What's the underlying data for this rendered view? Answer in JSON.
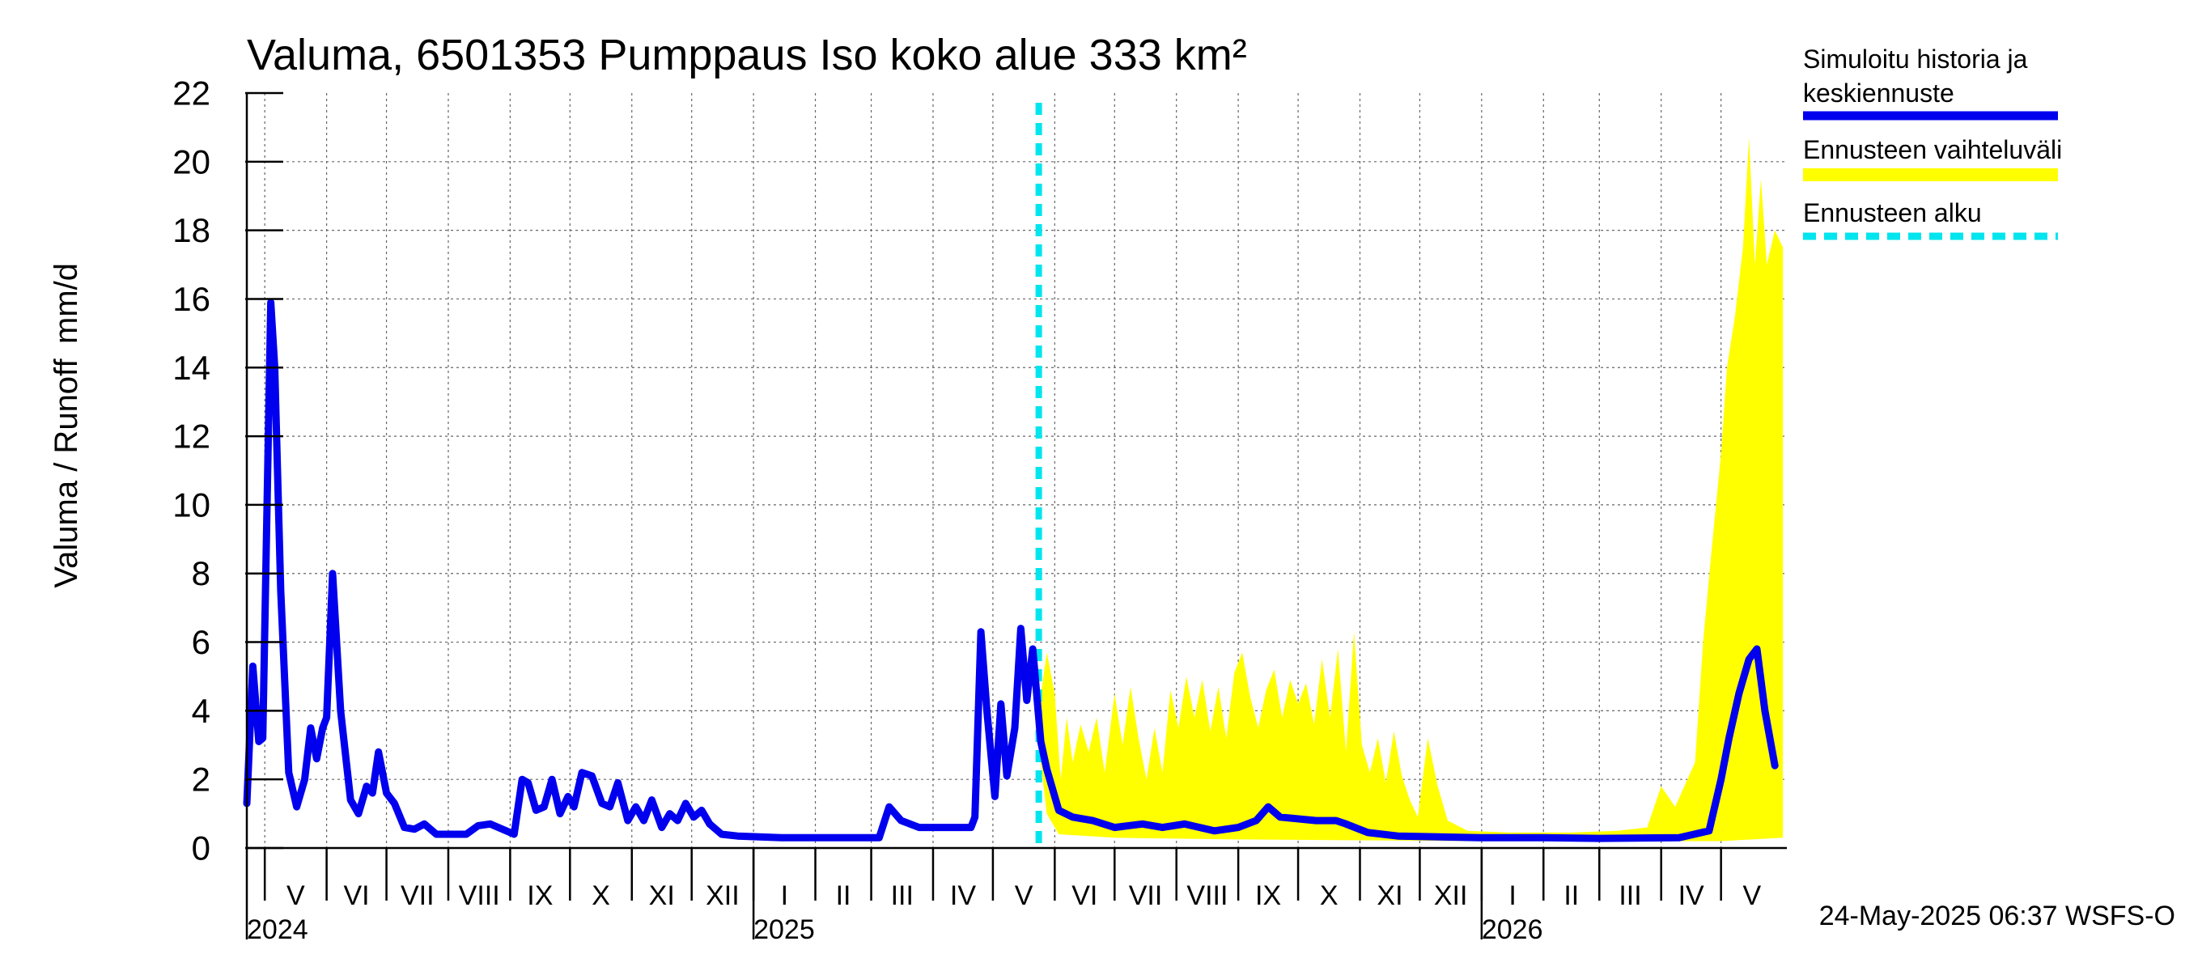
{
  "chart_data": {
    "type": "line",
    "title": "Valuma, 6501353 Pumppaus Iso koko alue 333 km²",
    "ylabel_left": "Valuma / Runoff",
    "ylabel_right": "mm/d",
    "ylim": [
      0,
      22
    ],
    "yticks": [
      "0",
      "2",
      "4",
      "6",
      "8",
      "10",
      "12",
      "14",
      "16",
      "18",
      "20",
      "22"
    ],
    "grid": true,
    "legend_position": "right",
    "x_unit": "date",
    "xlim": [
      "2024-04-22",
      "2026-06-03"
    ],
    "years": [
      {
        "label": "2024",
        "date": "2024-04-22"
      },
      {
        "label": "2025",
        "date": "2025-01-01"
      },
      {
        "label": "2026",
        "date": "2026-01-01"
      }
    ],
    "months": [
      {
        "label": "V",
        "start": "2024-05-01",
        "end": "2024-06-01"
      },
      {
        "label": "VI",
        "start": "2024-06-01",
        "end": "2024-07-01"
      },
      {
        "label": "VII",
        "start": "2024-07-01",
        "end": "2024-08-01"
      },
      {
        "label": "VIII",
        "start": "2024-08-01",
        "end": "2024-09-01"
      },
      {
        "label": "IX",
        "start": "2024-09-01",
        "end": "2024-10-01"
      },
      {
        "label": "X",
        "start": "2024-10-01",
        "end": "2024-11-01"
      },
      {
        "label": "XI",
        "start": "2024-11-01",
        "end": "2024-12-01"
      },
      {
        "label": "XII",
        "start": "2024-12-01",
        "end": "2025-01-01"
      },
      {
        "label": "I",
        "start": "2025-01-01",
        "end": "2025-02-01"
      },
      {
        "label": "II",
        "start": "2025-02-01",
        "end": "2025-03-01"
      },
      {
        "label": "III",
        "start": "2025-03-01",
        "end": "2025-04-01"
      },
      {
        "label": "IV",
        "start": "2025-04-01",
        "end": "2025-05-01"
      },
      {
        "label": "V",
        "start": "2025-05-01",
        "end": "2025-06-01"
      },
      {
        "label": "VI",
        "start": "2025-06-01",
        "end": "2025-07-01"
      },
      {
        "label": "VII",
        "start": "2025-07-01",
        "end": "2025-08-01"
      },
      {
        "label": "VIII",
        "start": "2025-08-01",
        "end": "2025-09-01"
      },
      {
        "label": "IX",
        "start": "2025-09-01",
        "end": "2025-10-01"
      },
      {
        "label": "X",
        "start": "2025-10-01",
        "end": "2025-11-01"
      },
      {
        "label": "XI",
        "start": "2025-11-01",
        "end": "2025-12-01"
      },
      {
        "label": "XII",
        "start": "2025-12-01",
        "end": "2026-01-01"
      },
      {
        "label": "I",
        "start": "2026-01-01",
        "end": "2026-02-01"
      },
      {
        "label": "II",
        "start": "2026-02-01",
        "end": "2026-03-01"
      },
      {
        "label": "III",
        "start": "2026-03-01",
        "end": "2026-04-01"
      },
      {
        "label": "IV",
        "start": "2026-04-01",
        "end": "2026-05-01"
      },
      {
        "label": "V",
        "start": "2026-05-01",
        "end": "2026-06-01"
      }
    ],
    "forecast_start": "2025-05-24",
    "series": [
      {
        "name": "Simuloitu historia ja keskiennuste",
        "color": "#0000ee",
        "points": [
          [
            "2024-04-22",
            1.3
          ],
          [
            "2024-04-25",
            5.3
          ],
          [
            "2024-04-28",
            3.1
          ],
          [
            "2024-04-30",
            3.2
          ],
          [
            "2024-05-04",
            15.9
          ],
          [
            "2024-05-06",
            14.0
          ],
          [
            "2024-05-09",
            7.5
          ],
          [
            "2024-05-13",
            2.2
          ],
          [
            "2024-05-17",
            1.2
          ],
          [
            "2024-05-21",
            2.0
          ],
          [
            "2024-05-24",
            3.5
          ],
          [
            "2024-05-27",
            2.6
          ],
          [
            "2024-05-30",
            3.5
          ],
          [
            "2024-06-01",
            3.8
          ],
          [
            "2024-06-04",
            8.0
          ],
          [
            "2024-06-08",
            4.0
          ],
          [
            "2024-06-13",
            1.4
          ],
          [
            "2024-06-17",
            1.0
          ],
          [
            "2024-06-21",
            1.8
          ],
          [
            "2024-06-24",
            1.6
          ],
          [
            "2024-06-27",
            2.8
          ],
          [
            "2024-07-01",
            1.6
          ],
          [
            "2024-07-05",
            1.3
          ],
          [
            "2024-07-10",
            0.6
          ],
          [
            "2024-07-15",
            0.55
          ],
          [
            "2024-07-20",
            0.7
          ],
          [
            "2024-07-26",
            0.4
          ],
          [
            "2024-08-10",
            0.4
          ],
          [
            "2024-08-16",
            0.65
          ],
          [
            "2024-08-22",
            0.7
          ],
          [
            "2024-08-30",
            0.5
          ],
          [
            "2024-09-03",
            0.4
          ],
          [
            "2024-09-07",
            2.0
          ],
          [
            "2024-09-10",
            1.9
          ],
          [
            "2024-09-14",
            1.1
          ],
          [
            "2024-09-18",
            1.2
          ],
          [
            "2024-09-22",
            2.0
          ],
          [
            "2024-09-26",
            1.0
          ],
          [
            "2024-09-30",
            1.5
          ],
          [
            "2024-10-03",
            1.2
          ],
          [
            "2024-10-07",
            2.2
          ],
          [
            "2024-10-12",
            2.1
          ],
          [
            "2024-10-17",
            1.3
          ],
          [
            "2024-10-21",
            1.2
          ],
          [
            "2024-10-25",
            1.9
          ],
          [
            "2024-10-30",
            0.8
          ],
          [
            "2024-11-03",
            1.2
          ],
          [
            "2024-11-07",
            0.8
          ],
          [
            "2024-11-11",
            1.4
          ],
          [
            "2024-11-16",
            0.6
          ],
          [
            "2024-11-20",
            1.0
          ],
          [
            "2024-11-24",
            0.8
          ],
          [
            "2024-11-28",
            1.3
          ],
          [
            "2024-12-02",
            0.9
          ],
          [
            "2024-12-06",
            1.1
          ],
          [
            "2024-12-10",
            0.7
          ],
          [
            "2024-12-16",
            0.4
          ],
          [
            "2024-12-24",
            0.35
          ],
          [
            "2025-01-15",
            0.3
          ],
          [
            "2025-02-15",
            0.3
          ],
          [
            "2025-03-05",
            0.3
          ],
          [
            "2025-03-10",
            1.2
          ],
          [
            "2025-03-16",
            0.8
          ],
          [
            "2025-03-25",
            0.6
          ],
          [
            "2025-04-20",
            0.6
          ],
          [
            "2025-04-22",
            0.9
          ],
          [
            "2025-04-25",
            6.3
          ],
          [
            "2025-04-28",
            4.0
          ],
          [
            "2025-05-02",
            1.5
          ],
          [
            "2025-05-05",
            4.2
          ],
          [
            "2025-05-08",
            2.1
          ],
          [
            "2025-05-12",
            3.5
          ],
          [
            "2025-05-15",
            6.4
          ],
          [
            "2025-05-18",
            4.3
          ],
          [
            "2025-05-21",
            5.8
          ],
          [
            "2025-05-25",
            3.1
          ],
          [
            "2025-05-28",
            2.3
          ],
          [
            "2025-06-03",
            1.1
          ],
          [
            "2025-06-10",
            0.9
          ],
          [
            "2025-06-20",
            0.8
          ],
          [
            "2025-07-01",
            0.6
          ],
          [
            "2025-07-15",
            0.7
          ],
          [
            "2025-07-25",
            0.6
          ],
          [
            "2025-08-05",
            0.7
          ],
          [
            "2025-08-20",
            0.5
          ],
          [
            "2025-09-01",
            0.6
          ],
          [
            "2025-09-10",
            0.8
          ],
          [
            "2025-09-16",
            1.2
          ],
          [
            "2025-09-22",
            0.9
          ],
          [
            "2025-10-10",
            0.8
          ],
          [
            "2025-10-20",
            0.8
          ],
          [
            "2025-10-25",
            0.7
          ],
          [
            "2025-11-05",
            0.45
          ],
          [
            "2025-11-20",
            0.35
          ],
          [
            "2025-12-31",
            0.3
          ],
          [
            "2026-02-01",
            0.3
          ],
          [
            "2026-03-01",
            0.28
          ],
          [
            "2026-04-10",
            0.3
          ],
          [
            "2026-04-25",
            0.5
          ],
          [
            "2026-05-01",
            2.0
          ],
          [
            "2026-05-05",
            3.2
          ],
          [
            "2026-05-10",
            4.5
          ],
          [
            "2026-05-15",
            5.5
          ],
          [
            "2026-05-19",
            5.8
          ],
          [
            "2026-05-23",
            4.0
          ],
          [
            "2026-05-28",
            2.4
          ]
        ]
      },
      {
        "name": "Ennusteen vaihteluväli",
        "color": "#ffff00",
        "upper": [
          [
            "2025-05-24",
            4.0
          ],
          [
            "2025-05-28",
            5.7
          ],
          [
            "2025-06-01",
            4.5
          ],
          [
            "2025-06-04",
            2.0
          ],
          [
            "2025-06-07",
            3.8
          ],
          [
            "2025-06-10",
            2.5
          ],
          [
            "2025-06-14",
            3.6
          ],
          [
            "2025-06-18",
            2.8
          ],
          [
            "2025-06-22",
            3.8
          ],
          [
            "2025-06-26",
            2.2
          ],
          [
            "2025-07-01",
            4.5
          ],
          [
            "2025-07-05",
            3.0
          ],
          [
            "2025-07-09",
            4.7
          ],
          [
            "2025-07-13",
            3.2
          ],
          [
            "2025-07-17",
            2.0
          ],
          [
            "2025-07-21",
            3.5
          ],
          [
            "2025-07-25",
            2.2
          ],
          [
            "2025-07-29",
            4.6
          ],
          [
            "2025-08-02",
            3.5
          ],
          [
            "2025-08-06",
            5.0
          ],
          [
            "2025-08-10",
            3.8
          ],
          [
            "2025-08-14",
            4.9
          ],
          [
            "2025-08-18",
            3.4
          ],
          [
            "2025-08-22",
            4.7
          ],
          [
            "2025-08-26",
            3.2
          ],
          [
            "2025-08-30",
            5.1
          ],
          [
            "2025-09-03",
            5.7
          ],
          [
            "2025-09-07",
            4.4
          ],
          [
            "2025-09-11",
            3.5
          ],
          [
            "2025-09-15",
            4.6
          ],
          [
            "2025-09-19",
            5.2
          ],
          [
            "2025-09-23",
            3.8
          ],
          [
            "2025-09-27",
            4.9
          ],
          [
            "2025-10-01",
            4.2
          ],
          [
            "2025-10-05",
            4.8
          ],
          [
            "2025-10-09",
            3.6
          ],
          [
            "2025-10-13",
            5.5
          ],
          [
            "2025-10-17",
            3.8
          ],
          [
            "2025-10-21",
            5.8
          ],
          [
            "2025-10-25",
            2.8
          ],
          [
            "2025-10-29",
            6.3
          ],
          [
            "2025-11-02",
            3.0
          ],
          [
            "2025-11-06",
            2.2
          ],
          [
            "2025-11-10",
            3.2
          ],
          [
            "2025-11-14",
            1.9
          ],
          [
            "2025-11-18",
            3.4
          ],
          [
            "2025-11-22",
            2.1
          ],
          [
            "2025-11-26",
            1.4
          ],
          [
            "2025-11-30",
            0.9
          ],
          [
            "2025-12-05",
            3.2
          ],
          [
            "2025-12-10",
            1.8
          ],
          [
            "2025-12-15",
            0.8
          ],
          [
            "2025-12-25",
            0.5
          ],
          [
            "2026-01-15",
            0.45
          ],
          [
            "2026-02-15",
            0.45
          ],
          [
            "2026-03-10",
            0.5
          ],
          [
            "2026-03-25",
            0.6
          ],
          [
            "2026-04-01",
            1.8
          ],
          [
            "2026-04-08",
            1.2
          ],
          [
            "2026-04-18",
            2.5
          ],
          [
            "2026-04-22",
            6.0
          ],
          [
            "2026-04-26",
            8.5
          ],
          [
            "2026-05-01",
            11.5
          ],
          [
            "2026-05-04",
            14.0
          ],
          [
            "2026-05-08",
            15.5
          ],
          [
            "2026-05-12",
            17.5
          ],
          [
            "2026-05-15",
            20.7
          ],
          [
            "2026-05-18",
            17.0
          ],
          [
            "2026-05-21",
            19.5
          ],
          [
            "2026-05-24",
            17.0
          ],
          [
            "2026-05-28",
            18.0
          ],
          [
            "2026-06-01",
            17.5
          ]
        ],
        "lower": [
          [
            "2025-05-24",
            3.0
          ],
          [
            "2025-05-28",
            1.0
          ],
          [
            "2025-06-03",
            0.4
          ],
          [
            "2025-07-01",
            0.3
          ],
          [
            "2025-09-01",
            0.25
          ],
          [
            "2025-12-31",
            0.2
          ],
          [
            "2026-04-01",
            0.2
          ],
          [
            "2026-05-01",
            0.2
          ],
          [
            "2026-06-01",
            0.3
          ]
        ]
      },
      {
        "name": "Ennusteen alku",
        "color": "#00e5ee"
      }
    ]
  },
  "legend": {
    "items": [
      {
        "line1": "Simuloitu historia ja",
        "line2": "keskiennuste",
        "color": "#0000ee"
      },
      {
        "line1": "Ennusteen vaihteluväli",
        "line2": "",
        "color": "#ffff00"
      },
      {
        "line1": "Ennusteen alku",
        "line2": "",
        "color": "#00e5ee"
      }
    ]
  },
  "footer": {
    "timestamp": "24-May-2025 06:37 WSFS-O"
  }
}
